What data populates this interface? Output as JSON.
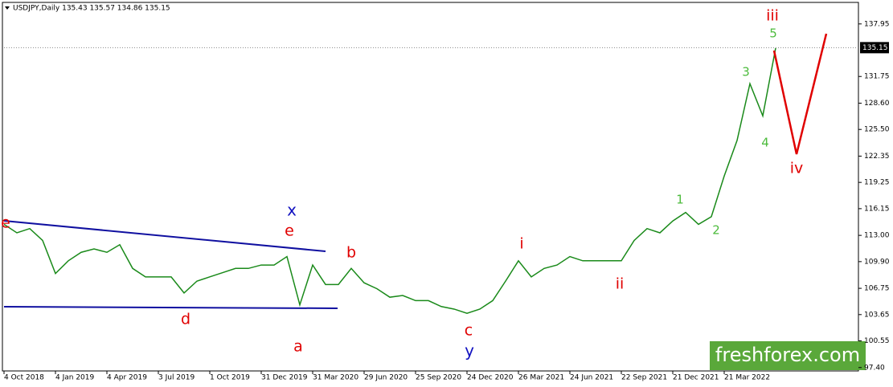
{
  "chart_data": {
    "type": "line",
    "title": "USDJPY,Daily  135.43 135.57 134.86 135.15",
    "categories": [
      "4 Oct 2018",
      null,
      null,
      null,
      "4 Jan 2019",
      null,
      null,
      null,
      "4 Apr 2019",
      null,
      null,
      null,
      "3 Jul 2019",
      null,
      null,
      null,
      "1 Oct 2019",
      null,
      null,
      null,
      "31 Dec 2019",
      null,
      null,
      null,
      "31 Mar 2020",
      null,
      null,
      null,
      "29 Jun 2020",
      null,
      null,
      null,
      "25 Sep 2020",
      null,
      null,
      null,
      "24 Dec 2020",
      null,
      null,
      null,
      "26 Mar 2021",
      null,
      null,
      null,
      "24 Jun 2021",
      null,
      null,
      null,
      "22 Sep 2021",
      null,
      null,
      null,
      "21 Dec 2021",
      null,
      null,
      null,
      "21 Mar 2022",
      null,
      null,
      null,
      null
    ],
    "series": [
      {
        "name": "USDJPY",
        "color": "#1a8a1a",
        "values": [
          114.3,
          113.3,
          113.8,
          112.4,
          108.5,
          110,
          111,
          111.4,
          111,
          111.9,
          109.1,
          108.1,
          108.1,
          108.1,
          106.2,
          107.6,
          108.1,
          108.6,
          109.1,
          109.1,
          109.5,
          109.5,
          110.5,
          104.8,
          109.5,
          107.2,
          107.2,
          109.1,
          107.4,
          106.7,
          105.7,
          105.9,
          105.3,
          105.3,
          104.6,
          104.3,
          103.8,
          104.3,
          105.3,
          107.6,
          110,
          108.1,
          109.1,
          109.5,
          110.5,
          110,
          110,
          110,
          110,
          112.4,
          113.8,
          113.3,
          114.7,
          115.7,
          114.3,
          115.2,
          120,
          124.2,
          130.9,
          127.1,
          135.1
        ]
      }
    ],
    "ylim": [
      97.0,
      140.3
    ],
    "yticks": [
      {
        "value": 97.4,
        "label": "97.40"
      },
      {
        "value": 100.55,
        "label": "100.55"
      },
      {
        "value": 103.65,
        "label": "103.65"
      },
      {
        "value": 106.75,
        "label": "106.75"
      },
      {
        "value": 109.9,
        "label": "109.90"
      },
      {
        "value": 113,
        "label": "113.00"
      },
      {
        "value": 116.15,
        "label": "116.15"
      },
      {
        "value": 119.25,
        "label": "119.25"
      },
      {
        "value": 122.35,
        "label": "122.35"
      },
      {
        "value": 125.5,
        "label": "125.50"
      },
      {
        "value": 128.6,
        "label": "128.60"
      },
      {
        "value": 131.75,
        "label": "131.75"
      },
      {
        "value": 137.95,
        "label": "137.95"
      }
    ],
    "last_value": 135.15,
    "annotations": [
      "e",
      "x",
      "e",
      "b",
      "d",
      "a",
      "c",
      "y",
      "i",
      "ii",
      "1",
      "2",
      "3",
      "4",
      "5",
      "iii",
      "iv"
    ],
    "watermark": "freshforex.com"
  }
}
